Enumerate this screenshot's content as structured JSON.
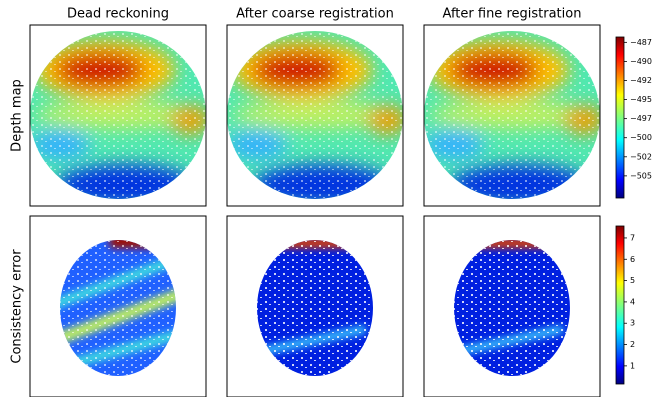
{
  "column_titles": [
    "Dead reckoning",
    "After coarse registration",
    "After fine registration"
  ],
  "row_labels": [
    "Depth map",
    "Consistency error"
  ],
  "colorbars": [
    {
      "ylim": [
        -507.9,
        -486.8
      ],
      "yticks": [
        {
          "value": -487.5,
          "label": "−487"
        },
        {
          "value": -490,
          "label": "−490"
        },
        {
          "value": -492.5,
          "label": "−492"
        },
        {
          "value": -495,
          "label": "−495"
        },
        {
          "value": -497.5,
          "label": "−497"
        },
        {
          "value": -500,
          "label": "−500"
        },
        {
          "value": -502.5,
          "label": "−502"
        },
        {
          "value": -505,
          "label": "−505"
        }
      ]
    },
    {
      "ylim": [
        0.15,
        7.56
      ],
      "yticks": [
        1,
        2,
        3,
        4,
        5,
        6,
        7
      ]
    }
  ]
}
